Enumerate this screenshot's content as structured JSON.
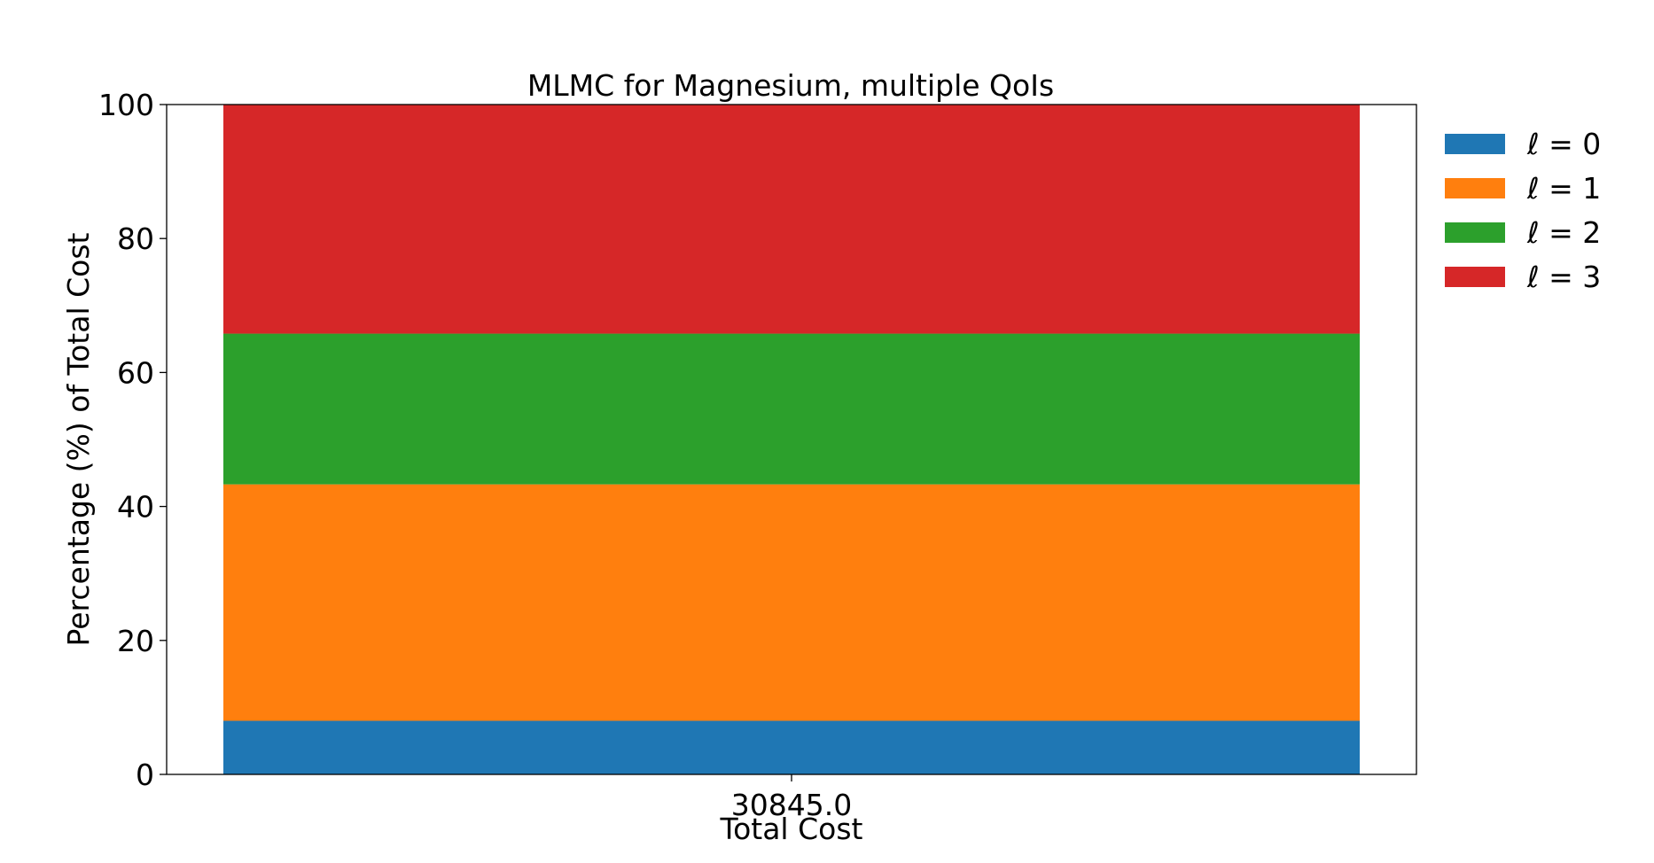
{
  "chart_data": {
    "type": "bar",
    "stacked": true,
    "title": "MLMC for Magnesium, multiple QoIs",
    "xlabel": "Total Cost",
    "ylabel": "Percentage (%) of Total Cost",
    "categories": [
      "30845.0"
    ],
    "ylim": [
      0,
      100
    ],
    "yticks": [
      "0",
      "20",
      "40",
      "60",
      "80",
      "100"
    ],
    "legend_position": "outside-top-right",
    "grid": false,
    "series": [
      {
        "name": "ℓ = 0",
        "values": [
          8.0
        ],
        "color": "#1f77b4"
      },
      {
        "name": "ℓ = 1",
        "values": [
          35.3
        ],
        "color": "#ff7f0e"
      },
      {
        "name": "ℓ = 2",
        "values": [
          22.5
        ],
        "color": "#2ca02c"
      },
      {
        "name": "ℓ = 3",
        "values": [
          34.2
        ],
        "color": "#d62728"
      }
    ]
  }
}
